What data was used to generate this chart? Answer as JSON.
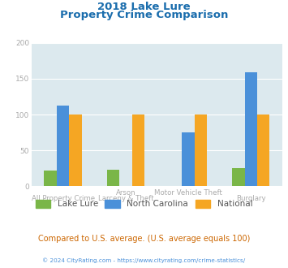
{
  "title_line1": "2018 Lake Lure",
  "title_line2": "Property Crime Comparison",
  "series": {
    "Lake Lure": [
      22,
      23,
      0,
      25
    ],
    "North Carolina": [
      113,
      0,
      75,
      159
    ],
    "National": [
      100,
      100,
      100,
      100
    ]
  },
  "colors": {
    "Lake Lure": "#7ab648",
    "North Carolina": "#4a90d9",
    "National": "#f5a623"
  },
  "ylim": [
    0,
    200
  ],
  "yticks": [
    0,
    50,
    100,
    150,
    200
  ],
  "plot_bg": "#dce9ee",
  "title_color": "#1a6dad",
  "top_labels": [
    "",
    "Arson",
    "Motor Vehicle Theft",
    ""
  ],
  "bottom_labels": [
    "All Property Crime",
    "Larceny & Theft",
    "",
    "Burglary"
  ],
  "label_color": "#aaaaaa",
  "footer_text": "Compared to U.S. average. (U.S. average equals 100)",
  "footer_color": "#cc6600",
  "copyright_text": "© 2024 CityRating.com - https://www.cityrating.com/crime-statistics/",
  "copyright_color": "#4a90d9",
  "grid_color": "#ffffff",
  "tick_color": "#aaaaaa"
}
